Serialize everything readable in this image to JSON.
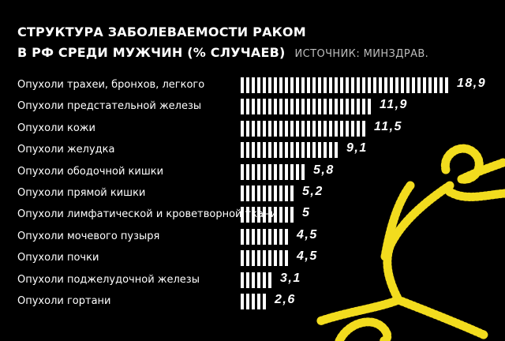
{
  "header": {
    "title_line1": "СТРУКТУРА ЗАБОЛЕВАЕМОСТИ РАКОМ",
    "title_line2": "В РФ СРЕДИ МУЖЧИН (% СЛУЧАЕВ)",
    "source": "ИСТОЧНИК: МИНЗДРАВ."
  },
  "colors": {
    "background": "#000000",
    "bars": "#ffffff",
    "decoration": "#f2dc1e"
  },
  "decoration_icon": "yellow-stitched-figure",
  "chart_data": {
    "type": "bar",
    "orientation": "horizontal",
    "title": "СТРУКТУРА ЗАБОЛЕВАЕМОСТИ РАКОМ В РФ СРЕДИ МУЖЧИН (% СЛУЧАЕВ)",
    "source": "ИСТОЧНИК: МИНЗДРАВ.",
    "categories": [
      "Опухоли трахеи, бронхов, легкого",
      "Опухоли предстательной железы",
      "Опухоли кожи",
      "Опухоли желудка",
      "Опухоли ободочной кишки",
      "Опухоли прямой кишки",
      "Опухоли лимфатической и кроветворной ткани",
      "Опухоли мочевого пузыря",
      "Опухоли почки",
      "Опухоли поджелудочной железы",
      "Опухоли гортани"
    ],
    "values": [
      18.9,
      11.9,
      11.5,
      9.1,
      5.8,
      5.2,
      5,
      4.5,
      4.5,
      3.1,
      2.6
    ],
    "value_labels": [
      "18,9",
      "11,9",
      "11,5",
      "9,1",
      "5,8",
      "5,2",
      "5",
      "4,5",
      "4,5",
      "3,1",
      "2,6"
    ],
    "xlabel": "",
    "ylabel": "",
    "grid": false,
    "legend": "none"
  }
}
